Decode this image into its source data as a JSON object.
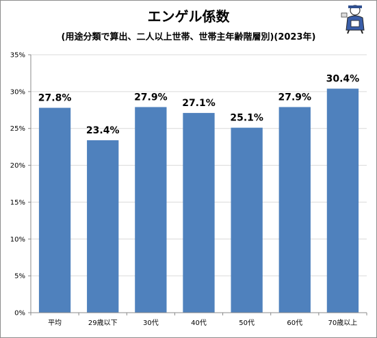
{
  "title": "エンゲル係数",
  "subtitle": "(用途分類で算出、二人以上世帯、世帯主年齢階層別)(2023年)",
  "colors": {
    "bar": "#4f81bd",
    "grid": "#d9d9d9",
    "axis": "#888888"
  },
  "chart_data": {
    "type": "bar",
    "title": "エンゲル係数",
    "subtitle": "(用途分類で算出、二人以上世帯、世帯主年齢階層別)(2023年)",
    "categories": [
      "平均",
      "29歳以下",
      "30代",
      "40代",
      "50代",
      "60代",
      "70歳以上"
    ],
    "values": [
      27.8,
      23.4,
      27.9,
      27.1,
      25.1,
      27.9,
      30.4
    ],
    "value_labels": [
      "27.8%",
      "23.4%",
      "27.9%",
      "27.1%",
      "25.1%",
      "27.9%",
      "30.4%"
    ],
    "ylim": [
      0,
      35
    ],
    "yticks": [
      0,
      5,
      10,
      15,
      20,
      25,
      30,
      35
    ],
    "ytick_labels": [
      "0%",
      "5%",
      "10%",
      "15%",
      "20%",
      "25%",
      "30%",
      "35%"
    ],
    "grid": true,
    "legend": false,
    "xlabel": "",
    "ylabel": ""
  }
}
